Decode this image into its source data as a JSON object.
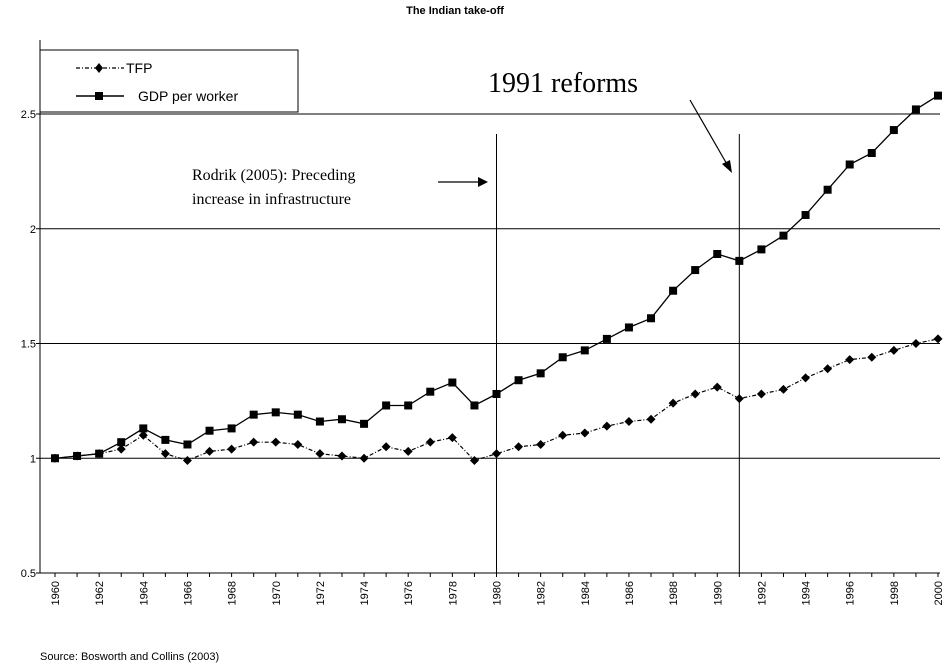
{
  "chart_data": {
    "type": "line",
    "title": "The Indian take-off",
    "xlabel": "",
    "ylabel": "",
    "x": [
      1960,
      1961,
      1962,
      1963,
      1964,
      1965,
      1966,
      1967,
      1968,
      1969,
      1970,
      1971,
      1972,
      1973,
      1974,
      1975,
      1976,
      1977,
      1978,
      1979,
      1980,
      1981,
      1982,
      1983,
      1984,
      1985,
      1986,
      1987,
      1988,
      1989,
      1990,
      1991,
      1992,
      1993,
      1994,
      1995,
      1996,
      1997,
      1998,
      1999,
      2000
    ],
    "x_tick_labels": [
      "1960",
      "1962",
      "1964",
      "1966",
      "1968",
      "1970",
      "1972",
      "1974",
      "1976",
      "1978",
      "1980",
      "1982",
      "1984",
      "1986",
      "1988",
      "1990",
      "1992",
      "1994",
      "1996",
      "1998",
      "2000"
    ],
    "y_tick_labels": [
      "0.5",
      "1",
      "1.5",
      "2",
      "2.5"
    ],
    "ylim": [
      0.5,
      2.5
    ],
    "grid": "horizontal",
    "legend_position": "top-left",
    "series": [
      {
        "name": "TFP",
        "style": "dash-dot",
        "marker": "diamond",
        "color": "#000000",
        "values": [
          1.0,
          1.01,
          1.02,
          1.04,
          1.1,
          1.02,
          0.99,
          1.03,
          1.04,
          1.07,
          1.07,
          1.06,
          1.02,
          1.01,
          1.0,
          1.05,
          1.03,
          1.07,
          1.09,
          0.99,
          1.02,
          1.05,
          1.06,
          1.1,
          1.11,
          1.14,
          1.16,
          1.17,
          1.24,
          1.28,
          1.31,
          1.26,
          1.28,
          1.3,
          1.35,
          1.39,
          1.43,
          1.44,
          1.47,
          1.5,
          1.52
        ]
      },
      {
        "name": "GDP per worker",
        "style": "solid",
        "marker": "square",
        "color": "#000000",
        "values": [
          1.0,
          1.01,
          1.02,
          1.07,
          1.13,
          1.08,
          1.06,
          1.12,
          1.13,
          1.19,
          1.2,
          1.19,
          1.16,
          1.17,
          1.15,
          1.23,
          1.23,
          1.29,
          1.33,
          1.23,
          1.28,
          1.34,
          1.37,
          1.44,
          1.47,
          1.52,
          1.57,
          1.61,
          1.73,
          1.82,
          1.89,
          1.86,
          1.91,
          1.97,
          2.06,
          2.17,
          2.28,
          2.33,
          2.43,
          2.52,
          2.58
        ]
      }
    ],
    "vertical_lines": [
      1980,
      1991
    ],
    "annotations": [
      {
        "text": "1991 reforms",
        "points_to": 1991
      },
      {
        "text_line1": "Rodrik (2005): Preceding",
        "text_line2": "increase in infrastructure",
        "points_to": 1980
      }
    ],
    "source": "Source: Bosworth and Collins (2003)"
  }
}
